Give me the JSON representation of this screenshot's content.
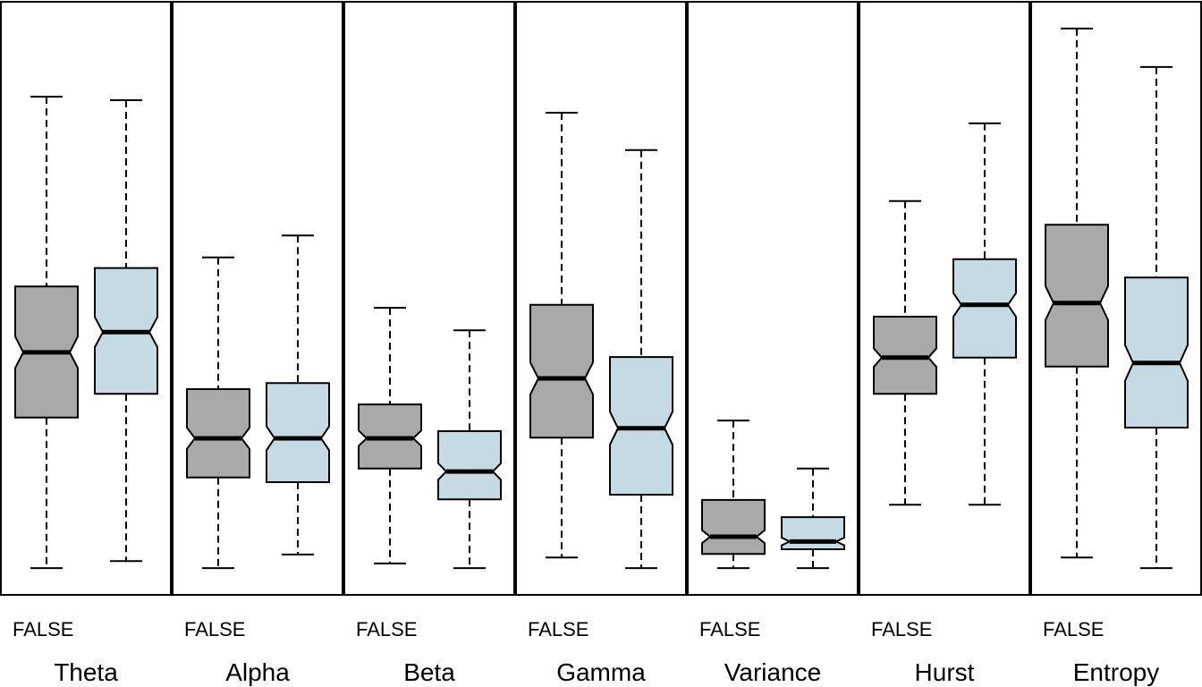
{
  "chart_data": [
    {
      "type": "boxplot",
      "title": "Theta",
      "categories": [
        "FALSE",
        null
      ],
      "colors": [
        "#a9a9a9",
        "#c5dae3"
      ],
      "ylim": [
        0,
        100
      ],
      "boxes": [
        {
          "whisker_low": 4.5,
          "q1": 29.9,
          "median": 40.9,
          "q3": 52.0,
          "whisker_high": 84.0
        },
        {
          "whisker_low": 5.7,
          "q1": 33.9,
          "median": 44.3,
          "q3": 55.1,
          "whisker_high": 83.4
        }
      ]
    },
    {
      "type": "boxplot",
      "title": "Alpha",
      "categories": [
        "FALSE",
        null
      ],
      "colors": [
        "#a9a9a9",
        "#c5dae3"
      ],
      "ylim": [
        0,
        100
      ],
      "boxes": [
        {
          "whisker_low": 4.5,
          "q1": 19.8,
          "median": 26.4,
          "q3": 34.7,
          "whisker_high": 56.9
        },
        {
          "whisker_low": 6.8,
          "q1": 19.0,
          "median": 26.4,
          "q3": 35.7,
          "whisker_high": 60.6
        }
      ]
    },
    {
      "type": "boxplot",
      "title": "Beta",
      "categories": [
        "FALSE",
        null
      ],
      "colors": [
        "#a9a9a9",
        "#c5dae3"
      ],
      "ylim": [
        0,
        100
      ],
      "boxes": [
        {
          "whisker_low": 5.3,
          "q1": 21.3,
          "median": 26.4,
          "q3": 32.1,
          "whisker_high": 48.4
        },
        {
          "whisker_low": 4.5,
          "q1": 16.1,
          "median": 20.8,
          "q3": 27.6,
          "whisker_high": 44.6
        }
      ]
    },
    {
      "type": "boxplot",
      "title": "Gamma",
      "categories": [
        "FALSE",
        null
      ],
      "colors": [
        "#a9a9a9",
        "#c5dae3"
      ],
      "ylim": [
        0,
        100
      ],
      "boxes": [
        {
          "whisker_low": 6.3,
          "q1": 26.5,
          "median": 36.5,
          "q3": 48.9,
          "whisker_high": 81.3
        },
        {
          "whisker_low": 4.5,
          "q1": 16.9,
          "median": 28.1,
          "q3": 40.1,
          "whisker_high": 75.0
        }
      ]
    },
    {
      "type": "boxplot",
      "title": "Variance",
      "categories": [
        "FALSE",
        null
      ],
      "colors": [
        "#a9a9a9",
        "#c5dae3"
      ],
      "ylim": [
        0,
        100
      ],
      "boxes": [
        {
          "whisker_low": 4.5,
          "q1": 6.9,
          "median": 9.8,
          "q3": 16.0,
          "whisker_high": 29.4
        },
        {
          "whisker_low": 4.5,
          "q1": 7.7,
          "median": 9.0,
          "q3": 13.1,
          "whisker_high": 21.3
        }
      ]
    },
    {
      "type": "boxplot",
      "title": "Hurst",
      "categories": [
        "FALSE",
        null
      ],
      "colors": [
        "#a9a9a9",
        "#c5dae3"
      ],
      "ylim": [
        0,
        100
      ],
      "boxes": [
        {
          "whisker_low": 15.2,
          "q1": 33.9,
          "median": 40.0,
          "q3": 46.9,
          "whisker_high": 66.4
        },
        {
          "whisker_low": 15.2,
          "q1": 40.0,
          "median": 48.9,
          "q3": 56.6,
          "whisker_high": 79.5
        }
      ]
    },
    {
      "type": "boxplot",
      "title": "Entropy",
      "categories": [
        "FALSE",
        null
      ],
      "colors": [
        "#a9a9a9",
        "#c5dae3"
      ],
      "ylim": [
        0,
        100
      ],
      "boxes": [
        {
          "whisker_low": 6.3,
          "q1": 38.5,
          "median": 49.2,
          "q3": 62.4,
          "whisker_high": 95.5
        },
        {
          "whisker_low": 4.5,
          "q1": 28.2,
          "median": 39.1,
          "q3": 53.5,
          "whisker_high": 89.0
        }
      ]
    }
  ]
}
